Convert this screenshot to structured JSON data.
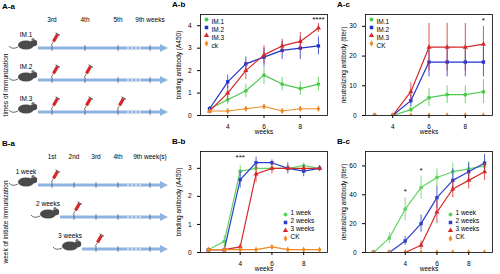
{
  "schematics": [
    {
      "title": "A-a",
      "axis_label": "times of immunization",
      "ticks": [
        "3rd",
        "4th",
        "5th",
        "9th weeks"
      ],
      "rows": [
        {
          "label": "IM.1",
          "injections": [
            0
          ]
        },
        {
          "label": "IM.2",
          "injections": [
            0,
            1
          ]
        },
        {
          "label": "IM.3",
          "injections": [
            0,
            1,
            2
          ]
        }
      ]
    },
    {
      "title": "B-a",
      "axis_label": "week of initiate immunization",
      "ticks": [
        "1st",
        "2nd",
        "3rd",
        "4th",
        "9th week(s)"
      ],
      "rows": [
        {
          "label": "1 week",
          "injections": [
            0
          ]
        },
        {
          "label": "2 weeks",
          "injections": [
            1
          ]
        },
        {
          "label": "3 weeks",
          "injections": [
            2
          ]
        }
      ]
    }
  ],
  "chart_data": [
    {
      "type": "line",
      "title": "A-b",
      "x_label": "weeks",
      "y_label": "binding antibody (A450)",
      "xlim": [
        2.5,
        9.5
      ],
      "xticks": [
        4,
        6,
        8
      ],
      "ylim": [
        0,
        4.5
      ],
      "yticks": [
        0,
        1,
        2,
        3,
        4
      ],
      "legend": "top-left",
      "x": [
        3,
        4,
        5,
        6,
        7,
        8,
        9
      ],
      "series": [
        {
          "name": "IM.1",
          "color": "#4cc94c",
          "marker": "circle",
          "values": [
            0.3,
            0.7,
            1.1,
            1.8,
            1.4,
            1.2,
            1.4
          ],
          "errors": [
            0.1,
            0.2,
            0.3,
            0.4,
            0.3,
            0.3,
            0.3
          ]
        },
        {
          "name": "IM.2",
          "color": "#2233cc",
          "marker": "square",
          "values": [
            0.3,
            1.5,
            2.3,
            2.6,
            2.9,
            3.0,
            3.1
          ],
          "errors": [
            0.1,
            0.3,
            0.3,
            0.4,
            0.4,
            0.5,
            0.4
          ]
        },
        {
          "name": "IM.3",
          "color": "#d42a2a",
          "marker": "triangle",
          "values": [
            0.2,
            1.0,
            2.0,
            2.7,
            3.1,
            3.3,
            3.9
          ],
          "errors": [
            0.1,
            0.3,
            0.4,
            0.4,
            0.3,
            0.4,
            0.2
          ]
        },
        {
          "name": "ck",
          "color": "#f08a24",
          "marker": "diamond",
          "values": [
            0.2,
            0.2,
            0.3,
            0.4,
            0.2,
            0.3,
            0.3
          ],
          "errors": [
            0.1,
            0.1,
            0.1,
            0.1,
            0.1,
            0.1,
            0.1
          ]
        }
      ],
      "annotations": [
        {
          "text": "****",
          "x": 9,
          "y": 4.3
        }
      ]
    },
    {
      "type": "line",
      "title": "A-c",
      "x_label": "weeks",
      "y_label": "neutralizing antibody (titer)",
      "xlim": [
        2.5,
        9.5
      ],
      "xticks": [
        4,
        6,
        8
      ],
      "ylim": [
        0,
        34
      ],
      "yticks": [
        0,
        10,
        20,
        30
      ],
      "legend": "top-left",
      "x": [
        3,
        4,
        5,
        6,
        7,
        8,
        9
      ],
      "series": [
        {
          "name": "IM.1",
          "color": "#4cc94c",
          "marker": "circle",
          "values": [
            0,
            0,
            2,
            6,
            7,
            7,
            8
          ],
          "errors": [
            0,
            0,
            1,
            3,
            3,
            3,
            4
          ]
        },
        {
          "name": "IM.2",
          "color": "#2233cc",
          "marker": "square",
          "values": [
            0,
            0,
            5,
            18,
            18,
            18,
            18
          ],
          "errors": [
            0,
            0,
            2,
            5,
            5,
            5,
            5
          ]
        },
        {
          "name": "IM.3",
          "color": "#d42a2a",
          "marker": "triangle",
          "values": [
            0,
            0,
            8,
            23,
            23,
            23,
            24
          ],
          "errors": [
            0,
            0,
            3,
            8,
            8,
            8,
            6
          ]
        },
        {
          "name": "CK",
          "color": "#f08a24",
          "marker": "diamond",
          "values": [
            0,
            0,
            0,
            0,
            0,
            0,
            0
          ]
        }
      ],
      "annotations": [
        {
          "text": "*",
          "x": 9,
          "y": 32
        }
      ]
    },
    {
      "type": "line",
      "title": "B-b",
      "x_label": "weeks",
      "y_label": "binding antibody (A450)",
      "xlim": [
        1.5,
        9.5
      ],
      "xticks": [
        4,
        6,
        8
      ],
      "ylim": [
        0,
        3.6
      ],
      "yticks": [
        0,
        1,
        2,
        3
      ],
      "legend": "bottom-right",
      "x": [
        2,
        3,
        4,
        5,
        6,
        7,
        8,
        9
      ],
      "series": [
        {
          "name": "1 week",
          "color": "#5fd35f",
          "marker": "circle",
          "values": [
            0.1,
            0.4,
            2.9,
            3.0,
            3.0,
            3.0,
            3.1,
            3.0
          ],
          "errors": [
            0.05,
            0.2,
            0.2,
            0.1,
            0.1,
            0.1,
            0.1,
            0.1
          ]
        },
        {
          "name": "2 weeks",
          "color": "#2b3fcc",
          "marker": "square",
          "values": [
            0.1,
            0.1,
            2.6,
            3.2,
            3.2,
            3.0,
            2.9,
            3.0
          ],
          "errors": [
            0.05,
            0.05,
            0.3,
            0.2,
            0.1,
            0.2,
            0.2,
            0.1
          ]
        },
        {
          "name": "3 weeks",
          "color": "#d42a2a",
          "marker": "triangle",
          "values": [
            0.1,
            0.1,
            0.2,
            2.8,
            3.0,
            3.0,
            3.0,
            3.0
          ],
          "errors": [
            0.05,
            0.05,
            0.1,
            0.3,
            0.2,
            0.1,
            0.1,
            0.1
          ]
        },
        {
          "name": "CK",
          "color": "#f08a24",
          "marker": "diamond",
          "values": [
            0.1,
            0.1,
            0.1,
            0.1,
            0.2,
            0.1,
            0.1,
            0.1
          ]
        }
      ],
      "annotations": [
        {
          "text": "***",
          "x": 4,
          "y": 3.4
        }
      ]
    },
    {
      "type": "line",
      "title": "B-c",
      "x_label": "weeks",
      "y_label": "neutralizing antibody (titer)",
      "xlim": [
        1.5,
        9.5
      ],
      "xticks": [
        4,
        6,
        8
      ],
      "ylim": [
        0,
        70
      ],
      "yticks": [
        0,
        20,
        40,
        60
      ],
      "legend": "bottom-right",
      "x": [
        2,
        3,
        4,
        5,
        6,
        7,
        8,
        9
      ],
      "series": [
        {
          "name": "1 week",
          "color": "#5fd35f",
          "marker": "circle",
          "values": [
            0,
            10,
            30,
            45,
            52,
            56,
            58,
            60
          ],
          "errors": [
            0,
            4,
            8,
            8,
            6,
            6,
            5,
            5
          ]
        },
        {
          "name": "2 weeks",
          "color": "#2b3fcc",
          "marker": "square",
          "values": [
            0,
            0,
            8,
            20,
            38,
            50,
            56,
            62
          ],
          "errors": [
            0,
            0,
            3,
            6,
            8,
            8,
            6,
            6
          ]
        },
        {
          "name": "3 weeks",
          "color": "#d42a2a",
          "marker": "triangle",
          "values": [
            0,
            0,
            0,
            5,
            28,
            44,
            50,
            56
          ],
          "errors": [
            0,
            0,
            0,
            3,
            8,
            6,
            6,
            6
          ]
        },
        {
          "name": "CK",
          "color": "#f08a24",
          "marker": "diamond",
          "values": [
            0,
            0,
            0,
            0,
            0,
            0,
            0,
            0
          ]
        }
      ],
      "annotations": [
        {
          "text": "*",
          "x": 4,
          "y": 42
        },
        {
          "text": "*",
          "x": 5,
          "y": 57
        }
      ]
    }
  ]
}
